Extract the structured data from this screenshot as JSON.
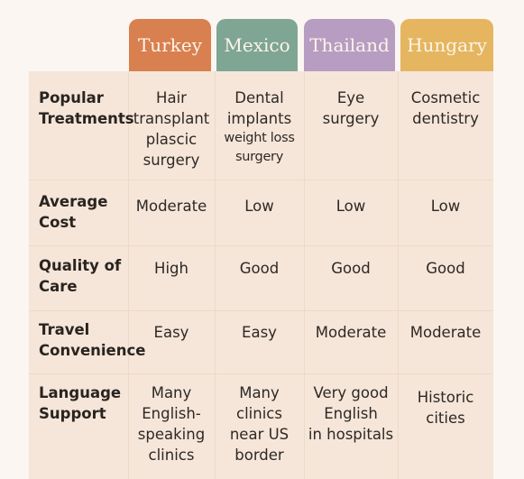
{
  "columns": [
    {
      "label": "Turkey",
      "color": "#d8804f"
    },
    {
      "label": "Mexico",
      "color": "#7fa594"
    },
    {
      "label": "Thailand",
      "color": "#b79dc1"
    },
    {
      "label": "Hungary",
      "color": "#e5b65f"
    }
  ],
  "rows": [
    {
      "label": [
        "Popular",
        "Treatments"
      ],
      "cells": [
        [
          "Hair",
          "transplant",
          "plascic",
          "surgery"
        ],
        [
          "Dental",
          "implants",
          "weight loss",
          "surgery"
        ],
        [
          "Eye",
          "surgery"
        ],
        [
          "Cosmetic",
          "dentistry"
        ]
      ]
    },
    {
      "label": [
        "Average",
        "Cost"
      ],
      "cells": [
        [
          "Moderate"
        ],
        [
          "Low"
        ],
        [
          "Low"
        ],
        [
          "Low"
        ]
      ]
    },
    {
      "label": [
        "Quality of",
        "Care"
      ],
      "cells": [
        [
          "High"
        ],
        [
          "Good"
        ],
        [
          "Good"
        ],
        [
          "Good"
        ]
      ]
    },
    {
      "label": [
        "Travel",
        "Convenience"
      ],
      "cells": [
        [
          "Easy"
        ],
        [
          "Easy"
        ],
        [
          "Moderate"
        ],
        [
          "Moderate"
        ]
      ]
    },
    {
      "label": [
        "Language",
        "Support"
      ],
      "cells": [
        [
          "Many",
          "English-",
          "speaking",
          "clinics"
        ],
        [
          "Many",
          "clinics",
          "near US",
          "border"
        ],
        [
          "Very good",
          "English",
          "in hospitals"
        ],
        [
          "Historic",
          "cities"
        ]
      ]
    }
  ]
}
